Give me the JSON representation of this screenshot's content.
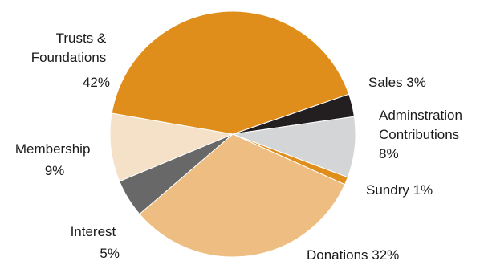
{
  "chart_data": {
    "type": "pie",
    "title": "",
    "start_angle_deg": -19,
    "direction": "clockwise",
    "slices": [
      {
        "name": "Sales",
        "value": 3,
        "color": "#231f20",
        "label_lines": [
          "Sales  3%"
        ]
      },
      {
        "name": "Adminstration Contributions",
        "value": 8,
        "color": "#d4d5d7",
        "label_lines": [
          "Adminstration",
          "Contributions",
          "8%"
        ]
      },
      {
        "name": "Sundry",
        "value": 1,
        "color": "#e08e1b",
        "label_lines": [
          "Sundry  1%"
        ]
      },
      {
        "name": "Donations",
        "value": 32,
        "color": "#eebd81",
        "label_lines": [
          "Donations  32%"
        ]
      },
      {
        "name": "Interest",
        "value": 5,
        "color": "#686868",
        "label_lines": [
          "Interest",
          "5%"
        ]
      },
      {
        "name": "Membership",
        "value": 9,
        "color": "#f5e0c8",
        "label_lines": [
          "Membership",
          "9%"
        ]
      },
      {
        "name": "Trusts & Foundations",
        "value": 42,
        "color": "#e08e1b",
        "label_lines": [
          "Trusts &",
          "Foundations",
          "42%"
        ]
      }
    ]
  }
}
